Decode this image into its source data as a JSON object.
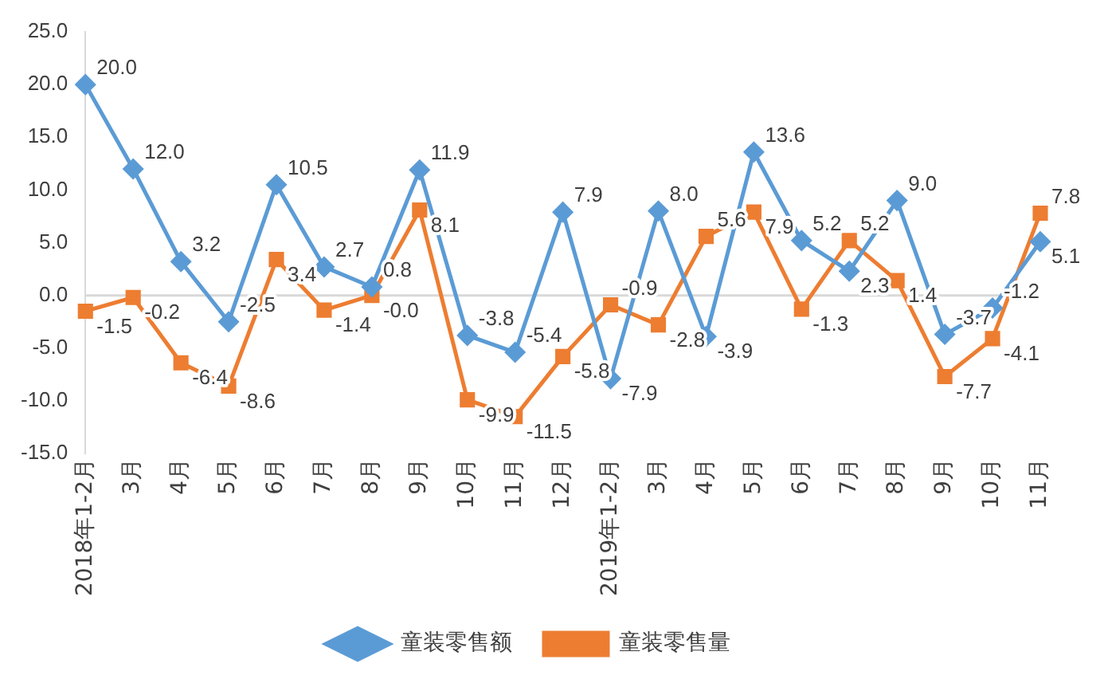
{
  "chart_data": {
    "type": "line",
    "categories": [
      "2018年1-2月",
      "3月",
      "4月",
      "5月",
      "6月",
      "7月",
      "8月",
      "9月",
      "10月",
      "11月",
      "12月",
      "2019年1-2月",
      "3月",
      "4月",
      "5月",
      "6月",
      "7月",
      "8月",
      "9月",
      "10月",
      "11月"
    ],
    "series": [
      {
        "name": "童装零售额",
        "color": "#5b9bd5",
        "marker": "diamond",
        "values": [
          20.0,
          12.0,
          3.2,
          -2.5,
          10.5,
          2.7,
          0.8,
          11.9,
          -3.8,
          -5.4,
          7.9,
          -7.9,
          8.0,
          -3.9,
          13.6,
          5.2,
          2.3,
          9.0,
          -3.7,
          -1.2,
          5.1
        ],
        "value_labels": [
          "20.0",
          "12.0",
          "3.2",
          "-2.5",
          "10.5",
          "2.7",
          "0.8",
          "11.9",
          "-3.8",
          "-5.4",
          "7.9",
          "-7.9",
          "8.0",
          "-3.9",
          "13.6",
          "5.2",
          "2.3",
          "9.0",
          "-3.7",
          "-1.2",
          "5.1"
        ]
      },
      {
        "name": "童装零售量",
        "color": "#ed7d31",
        "marker": "square",
        "values": [
          -1.5,
          -0.2,
          -6.4,
          -8.6,
          3.4,
          -1.4,
          0.0,
          8.1,
          -9.9,
          -11.5,
          -5.8,
          -0.9,
          -2.8,
          5.6,
          7.9,
          -1.3,
          5.2,
          1.4,
          -7.7,
          -4.1,
          7.8
        ],
        "value_labels": [
          "-1.5",
          "-0.2",
          "-6.4",
          "-8.6",
          "3.4",
          "-1.4",
          "-0.0",
          "8.1",
          "-9.9",
          "-11.5",
          "-5.8",
          "-0.9",
          "-2.8",
          "5.6",
          "7.9",
          "-1.3",
          "5.2",
          "1.4",
          "-7.7",
          "-4.1",
          "7.8"
        ]
      }
    ],
    "ylim": [
      -15,
      25
    ],
    "yticks": [
      {
        "value": -15,
        "label": "-15.0"
      },
      {
        "value": -10,
        "label": "-10.0"
      },
      {
        "value": -5,
        "label": "-5.0"
      },
      {
        "value": 0,
        "label": "0.0"
      },
      {
        "value": 5,
        "label": "5.0"
      },
      {
        "value": 10,
        "label": "10.0"
      },
      {
        "value": 15,
        "label": "15.0"
      },
      {
        "value": 20,
        "label": "20.0"
      },
      {
        "value": 25,
        "label": "25.0"
      }
    ],
    "legend": "bottom"
  }
}
